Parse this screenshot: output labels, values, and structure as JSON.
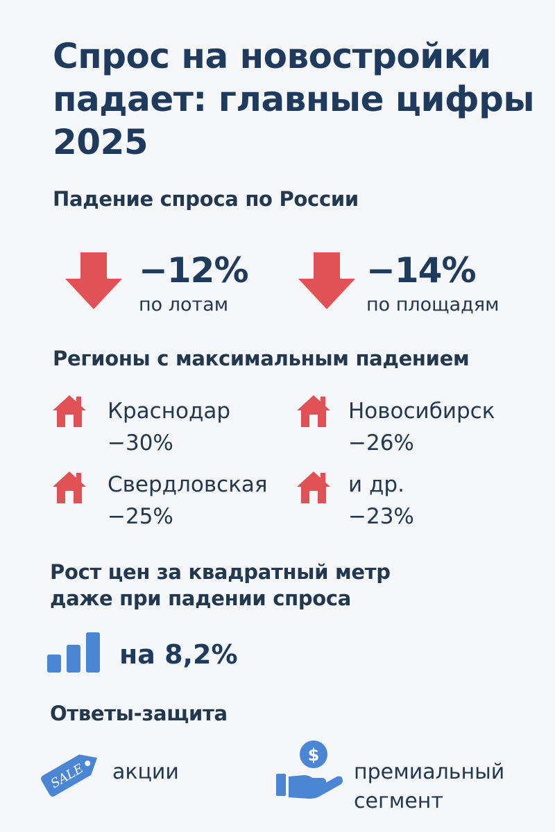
{
  "title": "Спрос на новостройки падает: главные цифры 2025",
  "national": {
    "heading": "Падение спроса по России",
    "stats": [
      {
        "value": "−12%",
        "label": "по лотам"
      },
      {
        "value": "−14%",
        "label": "по площадям"
      }
    ]
  },
  "regions": {
    "heading": "Регионы с максимальным падением",
    "items": [
      {
        "name": "Краснодар",
        "value": "−30%"
      },
      {
        "name": "Новосибирск",
        "value": "−26%"
      },
      {
        "name": "Свердловская",
        "value": "−25%"
      },
      {
        "name": "и др.",
        "value": "−23%"
      }
    ]
  },
  "price": {
    "heading_line1": "Рост цен за квадратный метр",
    "heading_line2": "даже при падении спроса",
    "value": "на 8,2%"
  },
  "responses": {
    "heading": "Ответы-защита",
    "sale_tag": "SALE",
    "dollar_sign": "$",
    "items": [
      {
        "label": "акции"
      },
      {
        "label_line1": "премиальный",
        "label_line2": "сегмент"
      }
    ]
  },
  "colors": {
    "accent_red": "#e05256",
    "accent_blue": "#4a86d4",
    "text_dark": "#1e3a5c",
    "background": "#f5f6f8"
  },
  "icons": [
    "down-arrow-icon",
    "house-icon",
    "bar-chart-icon",
    "sale-tag-icon",
    "hand-coin-icon"
  ]
}
